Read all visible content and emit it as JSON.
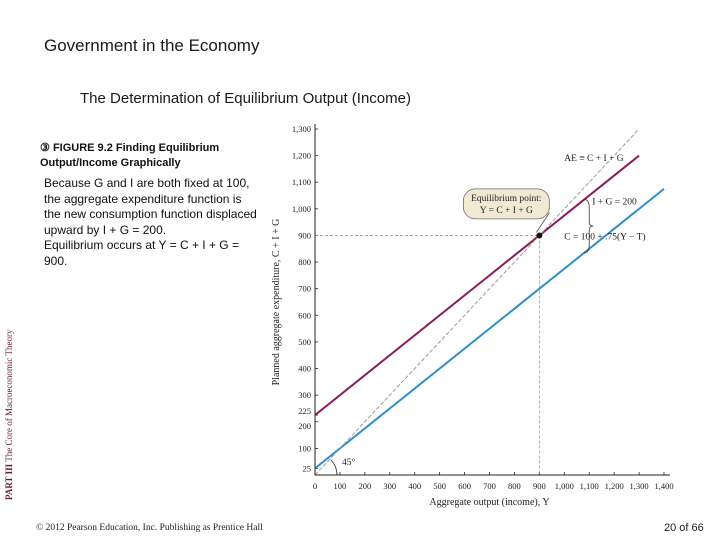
{
  "slide": {
    "title": "Government in the Economy",
    "subtitle": "The Determination of Equilibrium Output (Income)",
    "figure_marker": "③",
    "figure_caption": "FIGURE 9.2  Finding Equilibrium Output/Income Graphically",
    "explanation_1": "Because G and I are both fixed at 100, the aggregate expenditure function is the new consumption function displaced upward by I + G = 200.",
    "explanation_2": "Equilibrium occurs at Y = C + I + G = 900.",
    "side_part": "PART III",
    "side_title": "The Core of Macroeconomic Theory",
    "footer": "© 2012 Pearson Education, Inc. Publishing as Prentice Hall",
    "page_number": "20 of 66"
  },
  "colors": {
    "ae_line": "#8b1a5a",
    "c_line": "#2f8fc8",
    "guide_line": "#999999",
    "callout_fill": "#f1e9d2"
  },
  "chart_data": {
    "type": "line",
    "xlabel": "Aggregate output (income), Y",
    "ylabel": "Planned aggregate expenditure, C + I + G",
    "xlim": [
      0,
      1400
    ],
    "ylim": [
      0,
      1300
    ],
    "x_ticks": [
      "0",
      "100",
      "200",
      "300",
      "400",
      "500",
      "600",
      "700",
      "800",
      "900",
      "1,000",
      "1,100",
      "1,200",
      "1,300",
      "1,400"
    ],
    "y_ticks": [
      "25",
      "100",
      "200",
      "225",
      "300",
      "400",
      "500",
      "600",
      "700",
      "800",
      "900",
      "1,000",
      "1,100",
      "1,200",
      "1,300"
    ],
    "series": [
      {
        "name": "AE ≡ C + I + G",
        "x": [
          0,
          1300
        ],
        "y": [
          225,
          1200
        ]
      },
      {
        "name": "C = 100 + .75(Y − T)",
        "x": [
          0,
          1400
        ],
        "y": [
          25,
          1075
        ]
      },
      {
        "name": "45°",
        "x": [
          0,
          1300
        ],
        "y": [
          0,
          1300
        ]
      }
    ],
    "equilibrium": {
      "x": 900,
      "y": 900
    },
    "annotations": {
      "callout_line1": "Equilibrium point:",
      "callout_line2": "Y = C + I + G",
      "gap_label": "I + G = 200",
      "angle_label": "45°"
    },
    "grid": false
  }
}
